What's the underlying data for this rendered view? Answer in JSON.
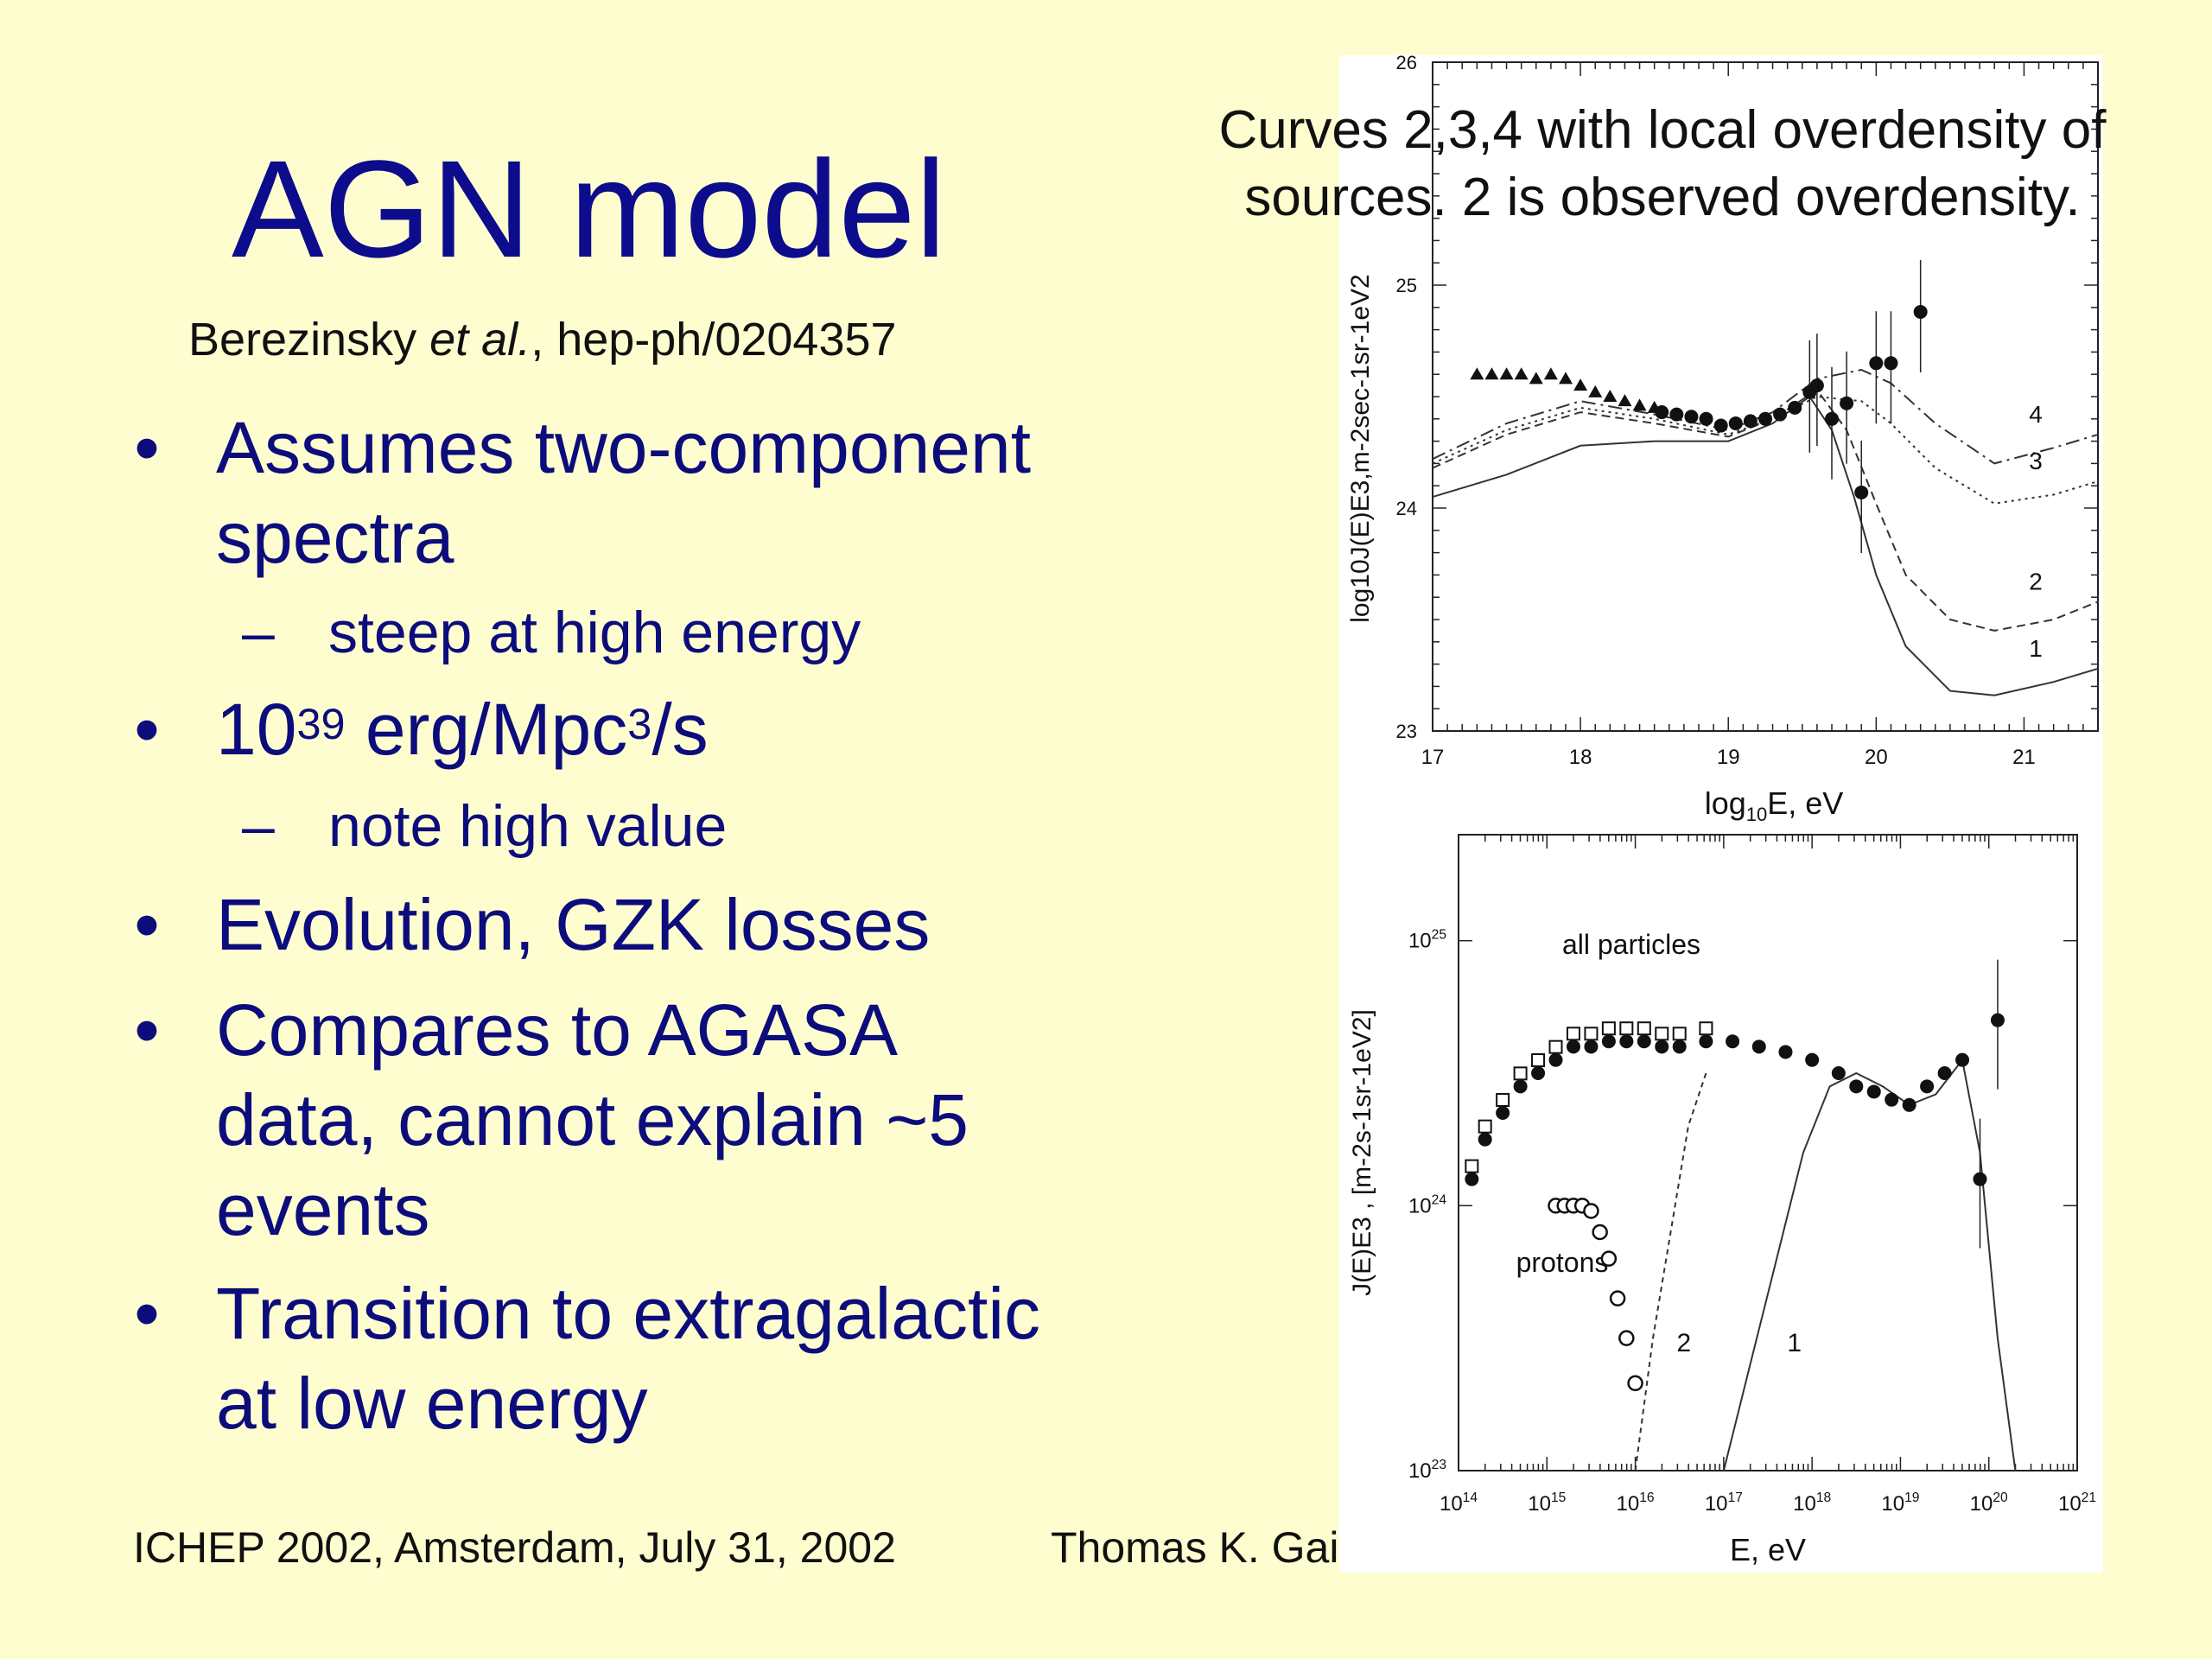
{
  "slide": {
    "title": "AGN model",
    "citation": {
      "authors": "Berezinsky",
      "etal": "et al.",
      "ref": ", hep-ph/0204357"
    },
    "bullets": [
      {
        "line1": "Assumes two-component",
        "line2": "spectra"
      },
      {
        "sub": "steep at high energy"
      },
      {
        "base": "10",
        "exp": "39",
        "mid": " erg/Mpc",
        "exp2": "3",
        "tail": "/s"
      },
      {
        "sub": "note high value"
      },
      {
        "line1": "Evolution, GZK losses"
      },
      {
        "line1": "Compares to AGASA",
        "line2": "data, cannot explain ~5",
        "line3": "events"
      },
      {
        "line1": "Transition to extragalactic",
        "line2": "at low energy"
      }
    ],
    "bullet_glyph": "•",
    "dash_glyph": "–",
    "footer_left": "ICHEP 2002, Amsterdam, July 31, 2002",
    "footer_right": "Thomas K. Gais",
    "caption_line1": "Curves 2,3,4 with local overdensity of",
    "caption_line2": "sources.  2 is observed overdensity."
  },
  "colors": {
    "background": "#fdfdd0",
    "title": "#0c0c8c",
    "bullet_text": "#0c0c7c"
  },
  "chart_data": [
    {
      "type": "line",
      "xlabel": "log10E, eV",
      "ylabel": "log10J(E)E3, m-2sec-1sr-1eV2",
      "xlim": [
        17,
        21.5
      ],
      "ylim": [
        23,
        26
      ],
      "x_ticks": [
        "17",
        "18",
        "19",
        "20",
        "21"
      ],
      "y_ticks": [
        "23",
        "24",
        "25",
        "26"
      ],
      "curve_labels": [
        "1",
        "2",
        "3",
        "4"
      ],
      "series": [
        {
          "name": "4",
          "x": [
            17,
            17.5,
            18,
            18.5,
            19,
            19.3,
            19.6,
            19.9,
            20.1,
            20.4,
            20.8,
            21.2,
            21.5
          ],
          "y": [
            24.22,
            24.38,
            24.48,
            24.42,
            24.35,
            24.43,
            24.58,
            24.62,
            24.56,
            24.38,
            24.2,
            24.27,
            24.33
          ]
        },
        {
          "name": "3",
          "x": [
            17,
            17.5,
            18,
            18.5,
            19,
            19.3,
            19.6,
            19.9,
            20.1,
            20.4,
            20.8,
            21.2,
            21.5
          ],
          "y": [
            24.2,
            24.35,
            24.45,
            24.4,
            24.33,
            24.4,
            24.5,
            24.48,
            24.38,
            24.18,
            24.02,
            24.06,
            24.12
          ]
        },
        {
          "name": "2",
          "x": [
            17,
            17.5,
            18,
            18.5,
            19,
            19.3,
            19.6,
            19.8,
            20.0,
            20.2,
            20.5,
            20.8,
            21.2,
            21.5
          ],
          "y": [
            24.18,
            24.33,
            24.43,
            24.38,
            24.32,
            24.4,
            24.53,
            24.35,
            24.02,
            23.7,
            23.5,
            23.45,
            23.5,
            23.58
          ]
        },
        {
          "name": "1",
          "x": [
            17,
            17.5,
            18,
            18.5,
            19,
            19.3,
            19.55,
            19.7,
            19.85,
            20.0,
            20.2,
            20.5,
            20.8,
            21.2,
            21.5
          ],
          "y": [
            24.05,
            24.15,
            24.28,
            24.3,
            24.3,
            24.38,
            24.5,
            24.35,
            24.05,
            23.7,
            23.38,
            23.18,
            23.16,
            23.22,
            23.28
          ]
        }
      ],
      "agasa_points": {
        "x": [
          18.55,
          18.65,
          18.75,
          18.85,
          18.95,
          19.05,
          19.15,
          19.25,
          19.35,
          19.45,
          19.55,
          19.6,
          19.7,
          19.8,
          19.9,
          20.0,
          20.1,
          20.3
        ],
        "y": [
          24.43,
          24.42,
          24.41,
          24.4,
          24.37,
          24.38,
          24.39,
          24.4,
          24.42,
          24.45,
          24.52,
          24.55,
          24.4,
          24.47,
          24.07,
          24.65,
          24.65,
          24.88
        ]
      },
      "other_points": {
        "x": [
          17.3,
          17.4,
          17.5,
          17.6,
          17.7,
          17.8,
          17.9,
          18.0,
          18.1,
          18.2,
          18.3,
          18.4,
          18.5
        ],
        "y": [
          24.6,
          24.6,
          24.6,
          24.6,
          24.58,
          24.6,
          24.58,
          24.55,
          24.52,
          24.5,
          24.48,
          24.46,
          24.45
        ]
      }
    },
    {
      "type": "scatter",
      "xlabel": "E, eV",
      "ylabel": "J(E)E3 , [m-2s-1sr-1eV2]",
      "x_scale": "log",
      "y_scale": "log",
      "xlim": [
        14,
        21
      ],
      "ylim": [
        23,
        25.4
      ],
      "x_ticks": [
        "10^14",
        "10^15",
        "10^16",
        "10^17",
        "10^18",
        "10^19",
        "10^20",
        "10^21"
      ],
      "y_ticks": [
        "10^23",
        "10^24",
        "10^25"
      ],
      "annotations": [
        "all particles",
        "protons",
        "2",
        "1"
      ],
      "all_particles": {
        "x": [
          14.15,
          14.3,
          14.5,
          14.7,
          14.9,
          15.1,
          15.3,
          15.5,
          15.7,
          15.9,
          16.1,
          16.3,
          16.5,
          16.8,
          17.1,
          17.4,
          17.7,
          18.0,
          18.3,
          18.5,
          18.7,
          18.9,
          19.1,
          19.3,
          19.5,
          19.7,
          19.9,
          20.1
        ],
        "y": [
          24.1,
          24.25,
          24.35,
          24.45,
          24.5,
          24.55,
          24.6,
          24.6,
          24.62,
          24.62,
          24.62,
          24.6,
          24.6,
          24.62,
          24.62,
          24.6,
          24.58,
          24.55,
          24.5,
          24.45,
          24.43,
          24.4,
          24.38,
          24.45,
          24.5,
          24.55,
          24.1,
          24.7
        ]
      },
      "protons": {
        "x": [
          15.1,
          15.2,
          15.3,
          15.4,
          15.5,
          15.6,
          15.7,
          15.8,
          15.9,
          16.0
        ],
        "y": [
          24.0,
          24.0,
          24.0,
          24.0,
          23.98,
          23.9,
          23.8,
          23.65,
          23.5,
          23.33
        ]
      },
      "series": [
        {
          "name": "1",
          "x": [
            17.0,
            17.3,
            17.6,
            17.9,
            18.2,
            18.5,
            18.8,
            19.1,
            19.4,
            19.7,
            19.9,
            20.1,
            20.3
          ],
          "y": [
            23.0,
            23.4,
            23.8,
            24.2,
            24.45,
            24.5,
            24.45,
            24.38,
            24.42,
            24.55,
            24.2,
            23.5,
            23.0
          ]
        },
        {
          "name": "2",
          "x": [
            16.0,
            16.2,
            16.4,
            16.6,
            16.8
          ],
          "y": [
            23.0,
            23.5,
            23.9,
            24.3,
            24.5
          ]
        }
      ]
    }
  ]
}
